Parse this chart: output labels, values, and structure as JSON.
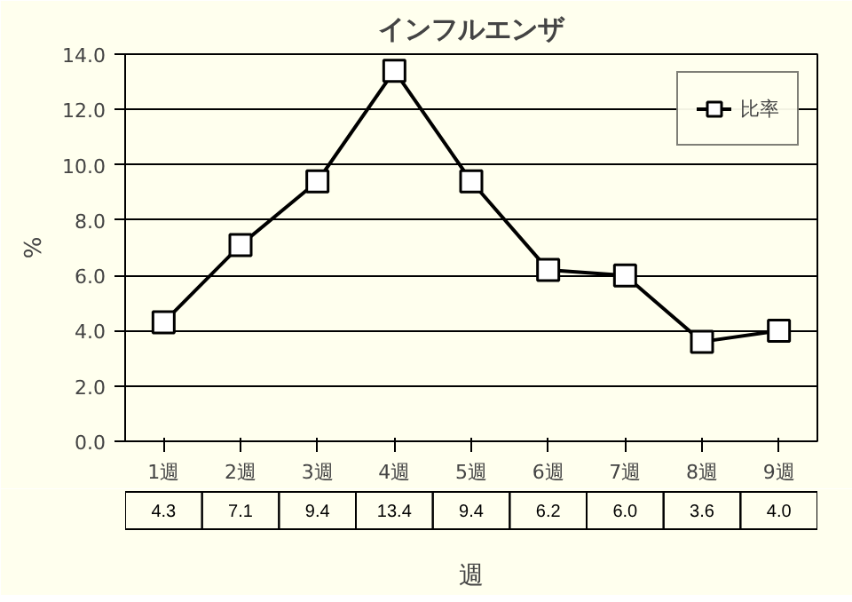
{
  "chart_data": {
    "type": "line",
    "title": "インフルエンザ",
    "xlabel": "週",
    "ylabel": "%",
    "categories": [
      "1週",
      "2週",
      "3週",
      "4週",
      "5週",
      "6週",
      "7週",
      "8週",
      "9週"
    ],
    "series": [
      {
        "name": "比率",
        "color": "#000000",
        "values": [
          4.3,
          7.1,
          9.4,
          13.4,
          9.4,
          6.2,
          6.0,
          3.6,
          4.0
        ],
        "value_labels": [
          "4.3",
          "7.1",
          "9.4",
          "13.4",
          "9.4",
          "6.2",
          "6.0",
          "3.6",
          "4.0"
        ]
      }
    ],
    "ylim": [
      0,
      14
    ],
    "yticks": [
      {
        "value": 0,
        "label": "0.0"
      },
      {
        "value": 2,
        "label": "2.0"
      },
      {
        "value": 4,
        "label": "4.0"
      },
      {
        "value": 6,
        "label": "6.0"
      },
      {
        "value": 8,
        "label": "8.0"
      },
      {
        "value": 10,
        "label": "10.0"
      },
      {
        "value": 12,
        "label": "12.0"
      },
      {
        "value": 14,
        "label": "14.0"
      }
    ],
    "grid": "y",
    "legend": "top right",
    "marker": "square",
    "line_style": "solid"
  }
}
